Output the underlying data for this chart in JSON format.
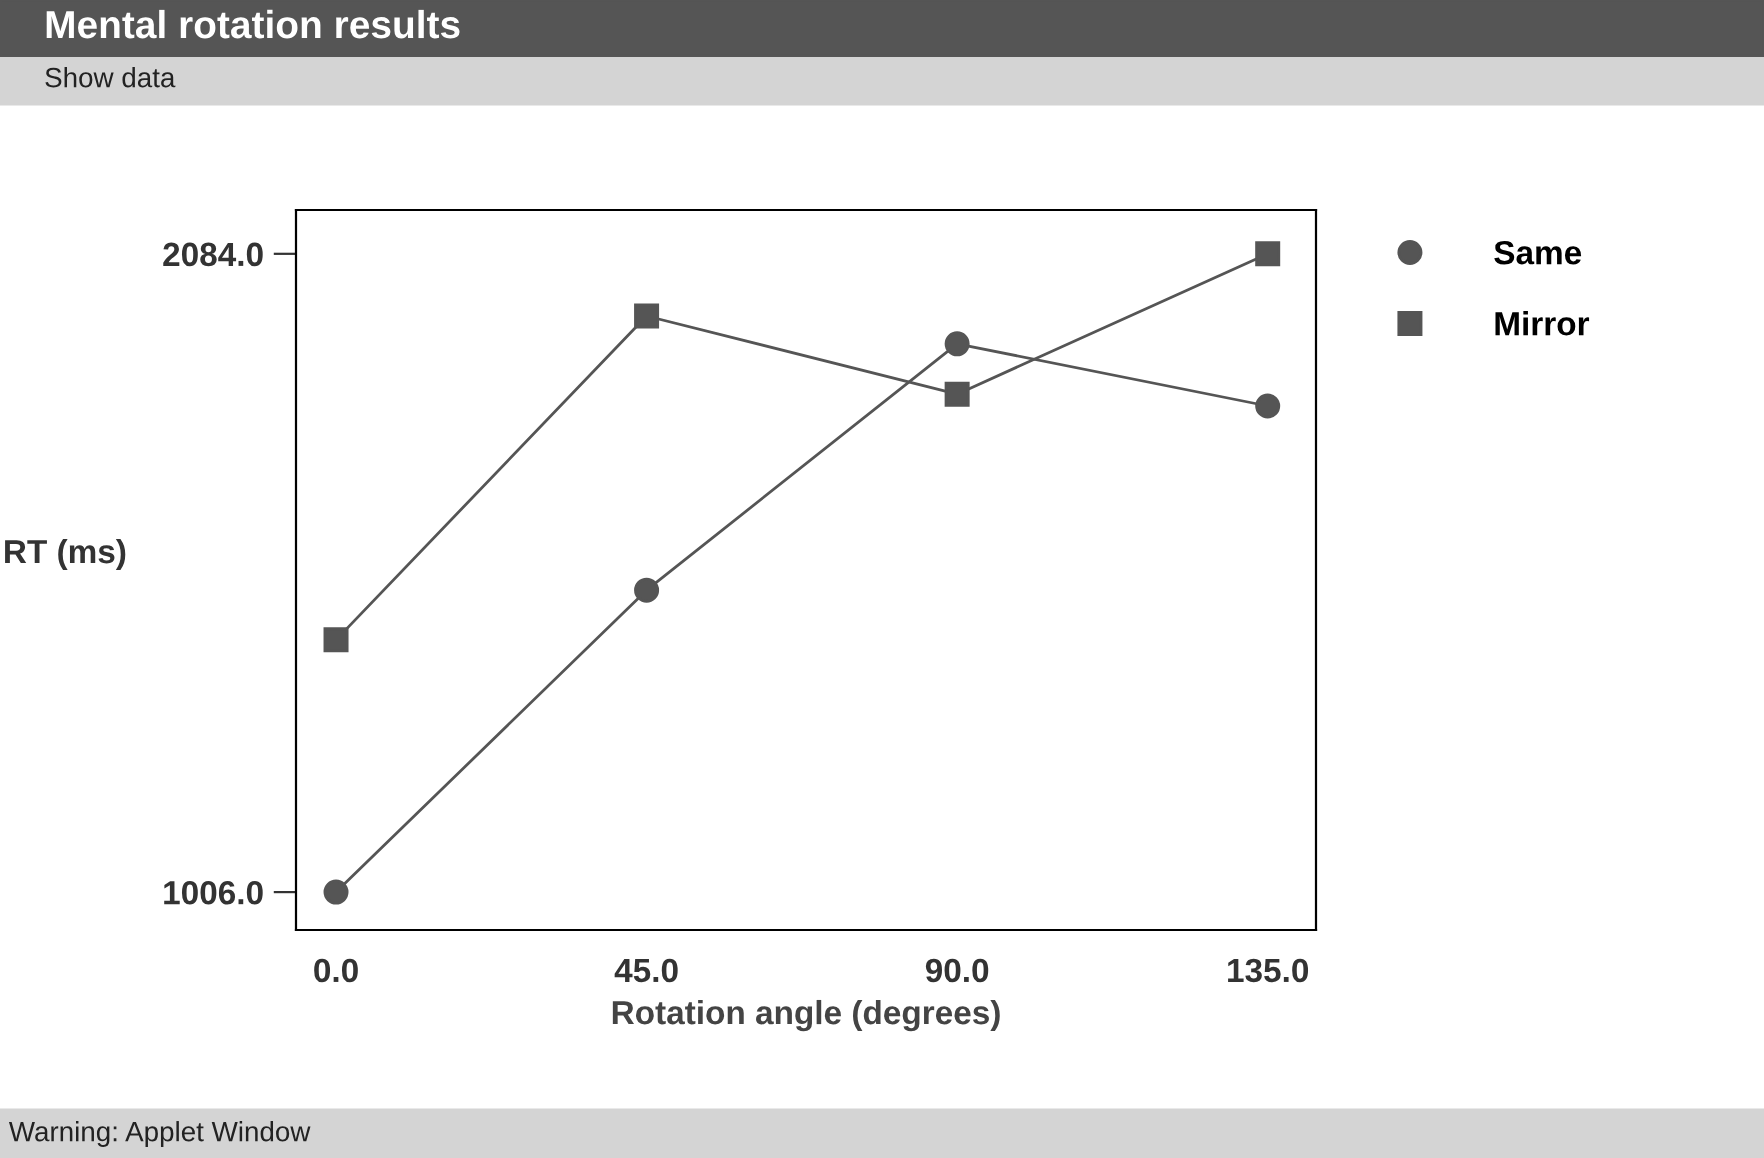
{
  "chart_data": {
    "type": "line",
    "title": "Mental rotation results",
    "xlabel": "Rotation angle (degrees)",
    "ylabel": "RT (ms)",
    "x": [
      0,
      45,
      90,
      135
    ],
    "series": [
      {
        "name": "Same",
        "color": "#555555",
        "marker": "circle",
        "values": [
          1006,
          1516,
          1932,
          1827
        ]
      },
      {
        "name": "Mirror",
        "color": "#555555",
        "marker": "square",
        "values": [
          1432,
          1979,
          1847,
          2084
        ]
      }
    ],
    "xlim": [
      -5.8,
      142
    ],
    "ylim": [
      942,
      2158
    ],
    "xticks": [
      {
        "value": 0,
        "label": "0.0"
      },
      {
        "value": 45,
        "label": "45.0"
      },
      {
        "value": 90,
        "label": "90.0"
      },
      {
        "value": 135,
        "label": "135.0"
      }
    ],
    "yticks": [
      {
        "value": 1006,
        "label": "1006.0"
      },
      {
        "value": 2084,
        "label": "2084.0"
      }
    ],
    "legend": "top right",
    "grid": false,
    "line_style": "solid",
    "annotations": [
      "Show data",
      "Warning: Applet Window"
    ]
  }
}
